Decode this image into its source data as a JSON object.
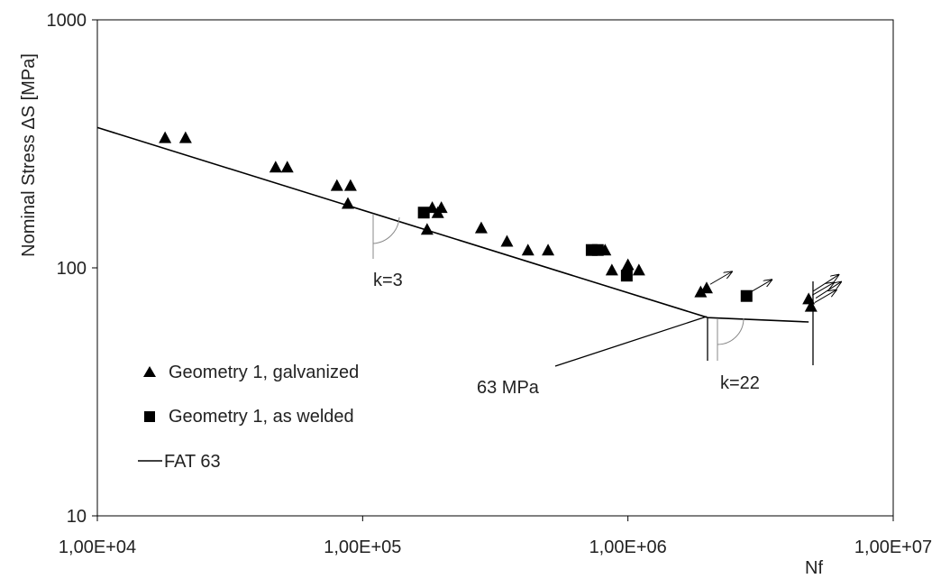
{
  "chart_data": {
    "type": "scatter",
    "title": "",
    "xlabel": "Nf",
    "ylabel": "Nominal Stress ΔS [MPa]",
    "x_scale": "log",
    "y_scale": "log",
    "xlim": [
      10000,
      10000000
    ],
    "ylim": [
      10,
      1000
    ],
    "x_ticks": [
      {
        "value": 10000,
        "label": "1,00E+04"
      },
      {
        "value": 100000,
        "label": "1,00E+05"
      },
      {
        "value": 1000000,
        "label": "1,00E+06"
      },
      {
        "value": 10000000,
        "label": "1,00E+07"
      }
    ],
    "y_ticks": [
      {
        "value": 10,
        "label": "10"
      },
      {
        "value": 100,
        "label": "100"
      },
      {
        "value": 1000,
        "label": "1000"
      }
    ],
    "grid": false,
    "legend_position": "bottom-left",
    "series": [
      {
        "name": "Geometry 1, galvanized",
        "marker": "triangle",
        "color": "#000000",
        "points": [
          [
            18000,
            335
          ],
          [
            21500,
            335
          ],
          [
            47000,
            255
          ],
          [
            52000,
            255
          ],
          [
            80000,
            215
          ],
          [
            90000,
            215
          ],
          [
            88000,
            182
          ],
          [
            175000,
            143
          ],
          [
            183000,
            175
          ],
          [
            192000,
            167
          ],
          [
            198000,
            175
          ],
          [
            280000,
            145
          ],
          [
            350000,
            128
          ],
          [
            420000,
            118
          ],
          [
            500000,
            118
          ],
          [
            820000,
            118
          ],
          [
            870000,
            98
          ],
          [
            1000000,
            103
          ],
          [
            1100000,
            98
          ],
          [
            1880000,
            80
          ],
          [
            1980000,
            83
          ],
          [
            4800000,
            75
          ],
          [
            4900000,
            70
          ]
        ],
        "runouts": [
          [
            1980000,
            83
          ],
          [
            4800000,
            75
          ],
          [
            4900000,
            70
          ]
        ]
      },
      {
        "name": "Geometry 1, as welded",
        "marker": "square",
        "color": "#000000",
        "points": [
          [
            170000,
            167
          ],
          [
            730000,
            118
          ],
          [
            770000,
            118
          ],
          [
            990000,
            93
          ],
          [
            2800000,
            77
          ]
        ],
        "runouts": [
          [
            2800000,
            77
          ]
        ]
      },
      {
        "name": "FAT 63",
        "type": "line",
        "color": "#000000",
        "points": [
          [
            10000,
            368
          ],
          [
            2000000,
            63
          ],
          [
            4800000,
            60.5
          ]
        ]
      }
    ],
    "annotations": [
      {
        "text": "k=3"
      },
      {
        "text": "63 MPa"
      },
      {
        "text": "k=22"
      }
    ]
  }
}
